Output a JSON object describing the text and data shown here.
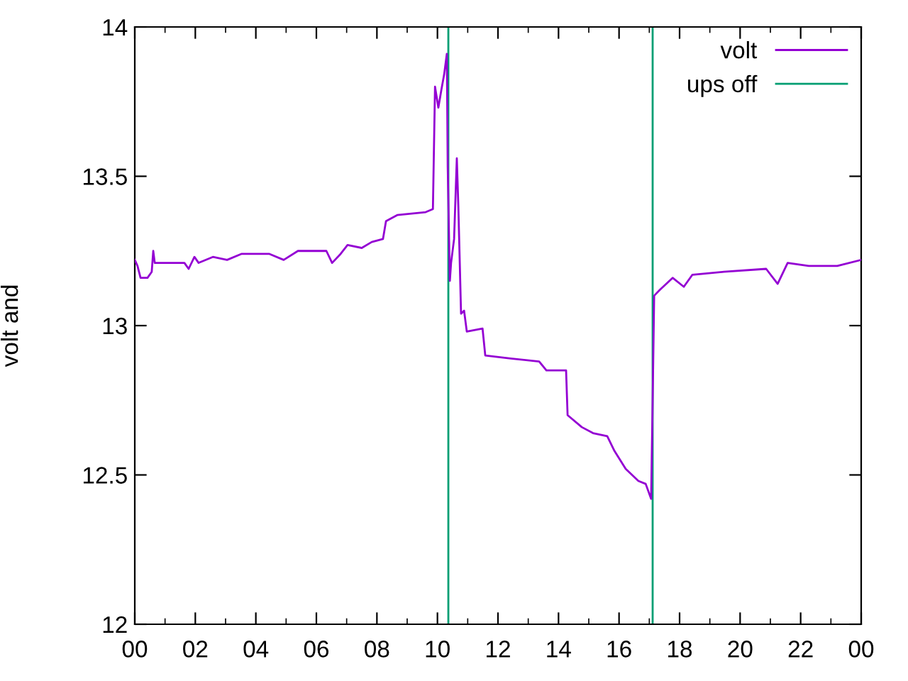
{
  "chart_data": {
    "type": "line",
    "ylabel": "volt and",
    "xlim": [
      0,
      24
    ],
    "xticks": [
      {
        "value": 0,
        "label": "00"
      },
      {
        "value": 2,
        "label": "02"
      },
      {
        "value": 4,
        "label": "04"
      },
      {
        "value": 6,
        "label": "06"
      },
      {
        "value": 8,
        "label": "08"
      },
      {
        "value": 10,
        "label": "10"
      },
      {
        "value": 12,
        "label": "12"
      },
      {
        "value": 14,
        "label": "14"
      },
      {
        "value": 16,
        "label": "16"
      },
      {
        "value": 18,
        "label": "18"
      },
      {
        "value": 20,
        "label": "20"
      },
      {
        "value": 22,
        "label": "22"
      },
      {
        "value": 24,
        "label": "00"
      }
    ],
    "ylim": [
      12,
      14
    ],
    "yticks": [
      12,
      12.5,
      13,
      13.5,
      14
    ],
    "grid": false,
    "legend": "top right",
    "marker": "none",
    "line_style": "solid",
    "series": [
      {
        "name": "volt",
        "color": "#9400d3",
        "x": [
          0,
          0.09,
          0.19,
          0.42,
          0.56,
          0.61,
          0.66,
          1.64,
          1.78,
          1.97,
          2.11,
          2.58,
          3.05,
          3.52,
          4.45,
          4.92,
          5.39,
          6.33,
          6.52,
          6.8,
          7.03,
          7.5,
          7.83,
          8.2,
          8.3,
          8.67,
          9.61,
          9.85,
          9.92,
          10.03,
          10.13,
          10.22,
          10.31,
          10.34,
          10.41,
          10.45,
          10.55,
          10.64,
          10.69,
          10.78,
          10.88,
          10.97,
          11.49,
          11.58,
          12.42,
          13.36,
          13.6,
          14.25,
          14.3,
          14.77,
          15.14,
          15.61,
          15.85,
          16.22,
          16.64,
          16.88,
          17.06,
          17.11,
          17.16,
          17.35,
          17.77,
          18.14,
          18.42,
          19.46,
          20.86,
          21.24,
          21.57,
          22.27,
          23.21,
          24
        ],
        "values": [
          13.22,
          13.2,
          13.16,
          13.16,
          13.18,
          13.25,
          13.21,
          13.21,
          13.19,
          13.23,
          13.21,
          13.23,
          13.22,
          13.24,
          13.24,
          13.22,
          13.25,
          13.25,
          13.21,
          13.24,
          13.27,
          13.26,
          13.28,
          13.29,
          13.35,
          13.37,
          13.38,
          13.39,
          13.8,
          13.73,
          13.79,
          13.84,
          13.91,
          13.53,
          13.15,
          13.21,
          13.29,
          13.56,
          13.4,
          13.04,
          13.05,
          12.98,
          12.99,
          12.9,
          12.89,
          12.88,
          12.85,
          12.85,
          12.7,
          12.66,
          12.64,
          12.63,
          12.58,
          12.52,
          12.48,
          12.47,
          12.42,
          12.75,
          13.1,
          13.12,
          13.16,
          13.13,
          13.17,
          13.18,
          13.19,
          13.14,
          13.21,
          13.2,
          13.2,
          13.22
        ]
      },
      {
        "name": "ups off",
        "color": "#009e73",
        "x": [
          10.36,
          10.36,
          null,
          17.11,
          17.11
        ],
        "values": [
          12,
          14,
          null,
          12,
          14
        ]
      }
    ]
  }
}
